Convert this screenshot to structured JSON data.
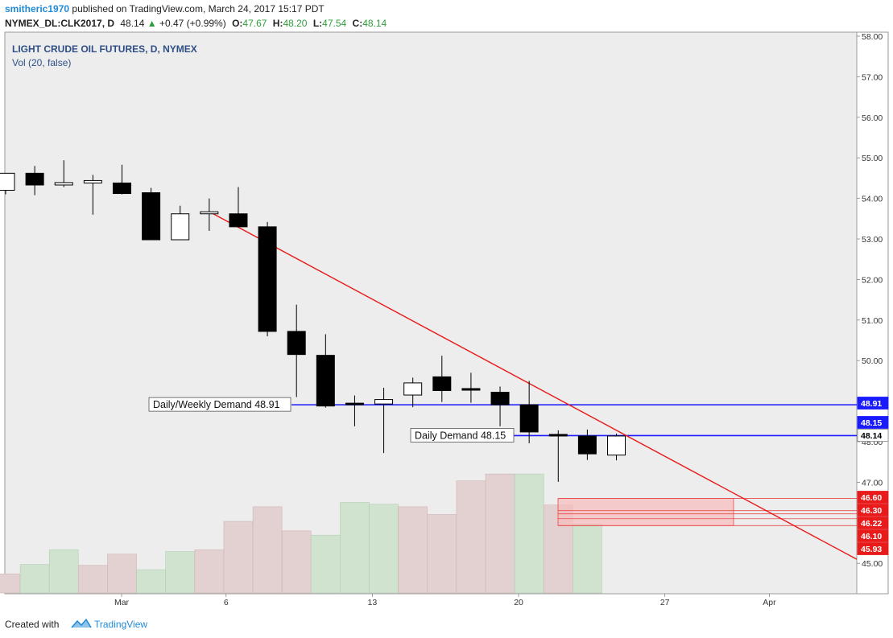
{
  "header": {
    "author": "smitheric1970",
    "published": "published on TradingView.com, March 24, 2017 15:17 PDT",
    "symbol": "NYMEX_DL:CLK2017, D",
    "last": "48.14",
    "change": "+0.47 (+0.99%)",
    "o_label": "O:",
    "o": "47.67",
    "h_label": "H:",
    "h": "48.20",
    "l_label": "L:",
    "l": "47.54",
    "c_label": "C:",
    "c": "48.14"
  },
  "footer": {
    "created_with": "Created with",
    "brand": "TradingView"
  },
  "colors": {
    "background": "#ededed",
    "bull_candle": "#ffffff",
    "bear_candle": "#000000",
    "volume_up": "#cfe3cf",
    "volume_down": "#e3d0d0",
    "demand_line": "#1a1aff",
    "trend_line": "#e81a1a",
    "zone_fill": "#f5bdbd",
    "zone_line": "#e84a4a",
    "axis_text": "#333333"
  },
  "chart_data": {
    "type": "candlestick",
    "title": "LIGHT CRUDE OIL FUTURES, D, NYMEX",
    "indicator": "Vol (20, false)",
    "ylim": [
      44.4,
      58.0
    ],
    "y_ticks": [
      "45.00",
      "47.00",
      "48.00",
      "49.00",
      "50.00",
      "51.00",
      "52.00",
      "53.00",
      "54.00",
      "55.00",
      "56.00",
      "57.00",
      "58.00"
    ],
    "x_ticks": [
      "Mar",
      "6",
      "13",
      "20",
      "27",
      "Apr"
    ],
    "candles": [
      {
        "date": "2017-02-23",
        "open": 54.2,
        "high": 54.62,
        "low": 54.1,
        "close": 54.62
      },
      {
        "date": "2017-02-24",
        "open": 54.62,
        "high": 54.8,
        "low": 54.08,
        "close": 54.33
      },
      {
        "date": "2017-02-27",
        "open": 54.33,
        "high": 54.94,
        "low": 54.28,
        "close": 54.39
      },
      {
        "date": "2017-02-28",
        "open": 54.38,
        "high": 54.58,
        "low": 53.6,
        "close": 54.44
      },
      {
        "date": "2017-03-01",
        "open": 54.38,
        "high": 54.83,
        "low": 54.1,
        "close": 54.12
      },
      {
        "date": "2017-03-02",
        "open": 54.14,
        "high": 54.26,
        "low": 52.98,
        "close": 52.98
      },
      {
        "date": "2017-03-03",
        "open": 52.98,
        "high": 53.82,
        "low": 52.98,
        "close": 53.62
      },
      {
        "date": "2017-03-06",
        "open": 53.62,
        "high": 54.0,
        "low": 53.2,
        "close": 53.67
      },
      {
        "date": "2017-03-07",
        "open": 53.62,
        "high": 54.28,
        "low": 53.32,
        "close": 53.3
      },
      {
        "date": "2017-03-08",
        "open": 53.3,
        "high": 53.42,
        "low": 50.6,
        "close": 50.72
      },
      {
        "date": "2017-03-09",
        "open": 50.72,
        "high": 51.38,
        "low": 49.1,
        "close": 50.15
      },
      {
        "date": "2017-03-10",
        "open": 50.13,
        "high": 50.65,
        "low": 48.84,
        "close": 48.88
      },
      {
        "date": "2017-03-13",
        "open": 48.95,
        "high": 49.14,
        "low": 48.38,
        "close": 48.94
      },
      {
        "date": "2017-03-14",
        "open": 48.93,
        "high": 49.33,
        "low": 47.72,
        "close": 49.04
      },
      {
        "date": "2017-03-15",
        "open": 49.15,
        "high": 49.58,
        "low": 48.85,
        "close": 49.45
      },
      {
        "date": "2017-03-16",
        "open": 49.6,
        "high": 50.12,
        "low": 48.98,
        "close": 49.26
      },
      {
        "date": "2017-03-17",
        "open": 49.31,
        "high": 49.7,
        "low": 48.96,
        "close": 49.3
      },
      {
        "date": "2017-03-20",
        "open": 49.22,
        "high": 49.36,
        "low": 48.38,
        "close": 48.91
      },
      {
        "date": "2017-03-21",
        "open": 48.91,
        "high": 49.5,
        "low": 47.96,
        "close": 48.24
      },
      {
        "date": "2017-03-22",
        "open": 48.18,
        "high": 48.28,
        "low": 47.01,
        "close": 48.14
      },
      {
        "date": "2017-03-23",
        "open": 48.14,
        "high": 48.3,
        "low": 47.55,
        "close": 47.7
      },
      {
        "date": "2017-03-24",
        "open": 47.67,
        "high": 48.2,
        "low": 47.54,
        "close": 48.14
      }
    ],
    "volume": [
      {
        "date": "2017-02-22",
        "value": 0.3,
        "up": true
      },
      {
        "date": "2017-02-23",
        "value": 0.22,
        "up": false
      },
      {
        "date": "2017-02-24",
        "value": 0.33,
        "up": true
      },
      {
        "date": "2017-02-27",
        "value": 0.5,
        "up": true
      },
      {
        "date": "2017-02-28",
        "value": 0.32,
        "up": false
      },
      {
        "date": "2017-03-01",
        "value": 0.45,
        "up": false
      },
      {
        "date": "2017-03-02",
        "value": 0.27,
        "up": true
      },
      {
        "date": "2017-03-03",
        "value": 0.48,
        "up": true
      },
      {
        "date": "2017-03-06",
        "value": 0.5,
        "up": false
      },
      {
        "date": "2017-03-07",
        "value": 0.83,
        "up": false
      },
      {
        "date": "2017-03-08",
        "value": 1.0,
        "up": false
      },
      {
        "date": "2017-03-09",
        "value": 0.72,
        "up": false
      },
      {
        "date": "2017-03-10",
        "value": 0.67,
        "up": true
      },
      {
        "date": "2017-03-13",
        "value": 1.05,
        "up": true
      },
      {
        "date": "2017-03-14",
        "value": 1.03,
        "up": true
      },
      {
        "date": "2017-03-15",
        "value": 1.0,
        "up": false
      },
      {
        "date": "2017-03-16",
        "value": 0.91,
        "up": false
      },
      {
        "date": "2017-03-17",
        "value": 1.3,
        "up": false
      },
      {
        "date": "2017-03-20",
        "value": 1.38,
        "up": false
      },
      {
        "date": "2017-03-21",
        "value": 1.38,
        "up": true
      },
      {
        "date": "2017-03-22",
        "value": 1.02,
        "up": false
      },
      {
        "date": "2017-03-23",
        "value": 0.8,
        "up": true
      }
    ],
    "horizontal_lines": [
      {
        "name": "Daily/Weekly Demand",
        "price": 48.91,
        "label": "Daily/Weekly Demand 48.91",
        "color": "#1a1aff"
      },
      {
        "name": "Daily Demand",
        "price": 48.15,
        "label": "Daily Demand 48.15",
        "color": "#1a1aff"
      }
    ],
    "trend_line": {
      "from": {
        "date": "2017-03-06",
        "price": 53.65
      },
      "to": {
        "date": "2017-04-06",
        "price": 45.1
      }
    },
    "demand_zone": {
      "from_date": "2017-03-22",
      "to_date": "2017-03-30",
      "top": 46.6,
      "bottom": 45.93,
      "levels": [
        46.6,
        46.3,
        46.22,
        46.1,
        45.93
      ]
    },
    "price_badges": [
      {
        "text": "48.91",
        "price": 48.91,
        "color": "#1a1aff"
      },
      {
        "text": "48.15",
        "price": 48.15,
        "color": "#1a1aff"
      },
      {
        "text": "48.14",
        "price": 48.14,
        "color": "#ffffff"
      },
      {
        "text": "46.60",
        "price": 46.6,
        "color": "#e81a1a"
      },
      {
        "text": "46.30",
        "price": 46.3,
        "color": "#e81a1a"
      },
      {
        "text": "46.22",
        "price": 46.22,
        "color": "#e81a1a"
      },
      {
        "text": "46.10",
        "price": 46.1,
        "color": "#e81a1a"
      },
      {
        "text": "45.93",
        "price": 45.93,
        "color": "#e81a1a"
      }
    ]
  }
}
